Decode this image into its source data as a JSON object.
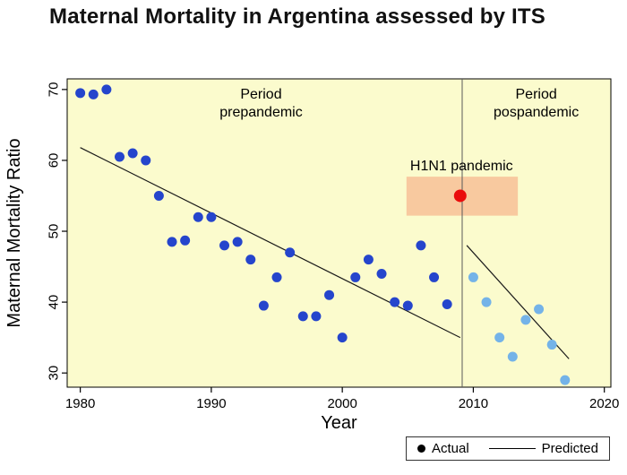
{
  "title": "Maternal Mortality in Argentina assessed by ITS",
  "chart_data": {
    "type": "scatter",
    "title": "Maternal Mortality in Argentina assessed by ITS",
    "xlabel": "Year",
    "ylabel": "Maternal Mortality Ratio",
    "xlim": [
      1979,
      2020.5
    ],
    "ylim": [
      28,
      71.5
    ],
    "xticks": [
      1980,
      1990,
      2000,
      2010,
      2020
    ],
    "yticks": [
      30,
      40,
      50,
      60,
      70
    ],
    "plot_bg_color": "#fbfbcd",
    "grid": false,
    "ref_line_x": 2009.15,
    "h1n1_box": {
      "x0": 2004.9,
      "x1": 2013.4,
      "y0": 52.2,
      "y1": 57.7,
      "color": "#f8c99f"
    },
    "series": [
      {
        "name": "Actual (prepandemic)",
        "color": "#2545cc",
        "radius": 5.5,
        "marker": "prepandemic-point",
        "points": [
          [
            1980,
            69.5
          ],
          [
            1981,
            69.3
          ],
          [
            1982,
            70.0
          ],
          [
            1983,
            60.5
          ],
          [
            1984,
            61.0
          ],
          [
            1985,
            60.0
          ],
          [
            1986,
            55.0
          ],
          [
            1987,
            48.5
          ],
          [
            1988,
            48.7
          ],
          [
            1989,
            52.0
          ],
          [
            1990,
            52.0
          ],
          [
            1991,
            48.0
          ],
          [
            1992,
            48.5
          ],
          [
            1993,
            46.0
          ],
          [
            1994,
            39.5
          ],
          [
            1995,
            43.5
          ],
          [
            1996,
            47.0
          ],
          [
            1997,
            38.0
          ],
          [
            1998,
            38.0
          ],
          [
            1999,
            41.0
          ],
          [
            2000,
            35.0
          ],
          [
            2001,
            43.5
          ],
          [
            2002,
            46.0
          ],
          [
            2003,
            44.0
          ],
          [
            2004,
            40.0
          ],
          [
            2005,
            39.5
          ],
          [
            2006,
            48.0
          ],
          [
            2007,
            43.5
          ],
          [
            2008,
            39.7
          ]
        ]
      },
      {
        "name": "Actual (pospandemic)",
        "color": "#74b3e8",
        "radius": 5.5,
        "marker": "pospandemic-point",
        "points": [
          [
            2010,
            43.5
          ],
          [
            2011,
            40.0
          ],
          [
            2012,
            35.0
          ],
          [
            2013,
            32.3
          ],
          [
            2014,
            37.5
          ],
          [
            2015,
            39.0
          ],
          [
            2016,
            34.0
          ],
          [
            2017,
            29.0
          ]
        ]
      },
      {
        "name": "H1N1 pandemic year",
        "color": "#ea0c0c",
        "radius": 7,
        "marker": "h1n1-point",
        "points": [
          [
            2009,
            55.0
          ]
        ]
      }
    ],
    "lines": [
      {
        "name": "Predicted prepandemic",
        "x": [
          1980,
          2009
        ],
        "y": [
          61.8,
          35.0
        ]
      },
      {
        "name": "Predicted pospandemic",
        "x": [
          2009.5,
          2017.3
        ],
        "y": [
          48.0,
          32.0
        ]
      }
    ],
    "annotations": [
      {
        "name": "period-prepandemic-label",
        "x": 1993.8,
        "y": 69.3,
        "lines": [
          "Period",
          "prepandemic"
        ]
      },
      {
        "name": "period-pospandemic-label",
        "x": 2014.8,
        "y": 69.3,
        "lines": [
          "Period",
          "pospandemic"
        ]
      },
      {
        "name": "h1n1-pandemic-label",
        "x": 2009.1,
        "y": 59.2,
        "lines": [
          "H1N1 pandemic"
        ]
      }
    ],
    "legend": {
      "actual": "Actual",
      "predicted": "Predicted"
    }
  }
}
